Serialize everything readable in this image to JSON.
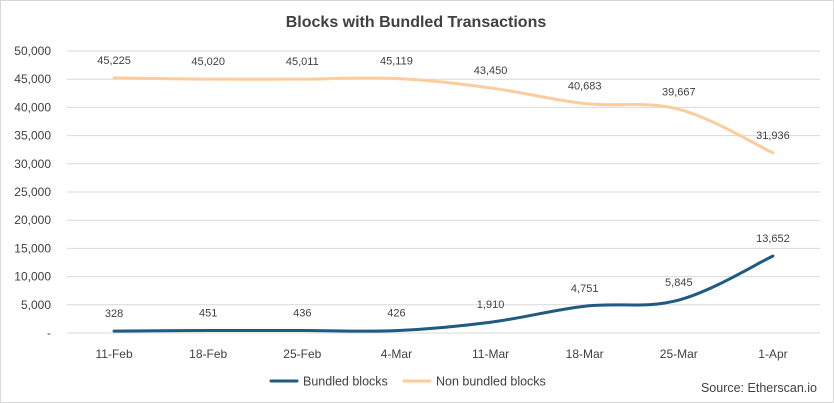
{
  "chart_data": {
    "type": "line",
    "title": "Blocks with Bundled Transactions",
    "categories": [
      "11-Feb",
      "18-Feb",
      "25-Feb",
      "4-Mar",
      "11-Mar",
      "18-Mar",
      "25-Mar",
      "1-Apr"
    ],
    "y_ticks": [
      "-",
      "5,000",
      "10,000",
      "15,000",
      "20,000",
      "25,000",
      "30,000",
      "35,000",
      "40,000",
      "45,000",
      "50,000"
    ],
    "ylim": [
      0,
      50000
    ],
    "ystep": 5000,
    "grid": true,
    "legend_position": "bottom",
    "series": [
      {
        "name": "Bundled blocks",
        "color": "#1f5a80",
        "values": [
          328,
          451,
          436,
          426,
          1910,
          4751,
          5845,
          13652
        ],
        "labels": [
          "328",
          "451",
          "436",
          "426",
          "1,910",
          "4,751",
          "5,845",
          "13,652"
        ]
      },
      {
        "name": "Non bundled blocks",
        "color": "#fdcc9c",
        "values": [
          45225,
          45020,
          45011,
          45119,
          43450,
          40683,
          39667,
          31936
        ],
        "labels": [
          "45,225",
          "45,020",
          "45,011",
          "45,119",
          "43,450",
          "40,683",
          "39,667",
          "31,936"
        ]
      }
    ],
    "source": "Source: Etherscan.io"
  }
}
